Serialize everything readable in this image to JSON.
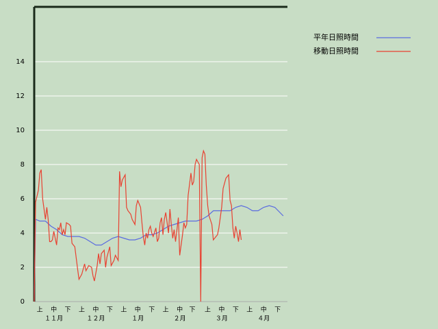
{
  "chart_data": {
    "type": "line",
    "xlim": [
      0,
      181
    ],
    "ylim": [
      0,
      17.2
    ],
    "yticks": [
      0,
      2,
      4,
      6,
      8,
      10,
      12,
      14
    ],
    "xticks": [
      {
        "value": 4,
        "label": "上"
      },
      {
        "value": 14,
        "label": "中"
      },
      {
        "value": 24,
        "label": "下"
      },
      {
        "value": 34,
        "label": "上"
      },
      {
        "value": 44,
        "label": "中"
      },
      {
        "value": 54,
        "label": "下"
      },
      {
        "value": 64,
        "label": "上"
      },
      {
        "value": 74,
        "label": "中"
      },
      {
        "value": 84,
        "label": "下"
      },
      {
        "value": 94,
        "label": "上"
      },
      {
        "value": 104,
        "label": "中"
      },
      {
        "value": 113,
        "label": "下"
      },
      {
        "value": 124,
        "label": "上"
      },
      {
        "value": 134,
        "label": "中"
      },
      {
        "value": 144,
        "label": "下"
      },
      {
        "value": 154,
        "label": "上"
      },
      {
        "value": 164,
        "label": "中"
      },
      {
        "value": 174,
        "label": "下"
      }
    ],
    "month_labels": [
      {
        "value": 14,
        "label": "１１月"
      },
      {
        "value": 44,
        "label": "１２月"
      },
      {
        "value": 74,
        "label": "１月"
      },
      {
        "value": 104,
        "label": "２月"
      },
      {
        "value": 134,
        "label": "３月"
      },
      {
        "value": 164,
        "label": "４月"
      }
    ],
    "grid": true,
    "series": [
      {
        "name": "平年日照時間",
        "color": "#5a6be0",
        "x": [
          0,
          1,
          4,
          8,
          12,
          16,
          20,
          24,
          28,
          32,
          36,
          40,
          44,
          48,
          52,
          56,
          60,
          64,
          68,
          72,
          76,
          80,
          84,
          88,
          92,
          96,
          100,
          104,
          108,
          112,
          116,
          120,
          124,
          128,
          132,
          136,
          140,
          144,
          148,
          152,
          156,
          160,
          164,
          168,
          172,
          178
        ],
        "values": [
          0,
          4.8,
          4.7,
          4.7,
          4.4,
          4.2,
          3.9,
          3.8,
          3.8,
          3.8,
          3.7,
          3.5,
          3.3,
          3.3,
          3.5,
          3.7,
          3.8,
          3.7,
          3.6,
          3.6,
          3.7,
          3.9,
          3.9,
          4.0,
          4.2,
          4.4,
          4.5,
          4.6,
          4.7,
          4.7,
          4.7,
          4.8,
          5.0,
          5.3,
          5.3,
          5.3,
          5.3,
          5.5,
          5.6,
          5.5,
          5.3,
          5.3,
          5.5,
          5.6,
          5.5,
          5.0
        ]
      },
      {
        "name": "移動日照時間",
        "color": "#e84030",
        "x": [
          0,
          1,
          3,
          4,
          5,
          6,
          8,
          9,
          10,
          11,
          12,
          13,
          14,
          16,
          17,
          18,
          19,
          20,
          21,
          22,
          23,
          25,
          26,
          27,
          29,
          31,
          32,
          34,
          36,
          37,
          39,
          41,
          42,
          43,
          45,
          46,
          47,
          48,
          50,
          51,
          52,
          54,
          55,
          57,
          58,
          60,
          61,
          62,
          63,
          65,
          66,
          67,
          69,
          70,
          72,
          73,
          74,
          76,
          77,
          78,
          79,
          80,
          81,
          82,
          83,
          84,
          85,
          87,
          88,
          89,
          90,
          91,
          92,
          93,
          94,
          96,
          97,
          98,
          99,
          100,
          101,
          103,
          104,
          106,
          107,
          108,
          109,
          110,
          112,
          113,
          114,
          115,
          116,
          118,
          119,
          120,
          121,
          122,
          123,
          124,
          125,
          127,
          128,
          130,
          131,
          132,
          134,
          135,
          137,
          138,
          139,
          140,
          141,
          142,
          143,
          144,
          145,
          146,
          147,
          148
        ],
        "values": [
          0,
          5.8,
          6.5,
          7.5,
          7.7,
          6,
          4.8,
          5.5,
          4.8,
          3.5,
          3.5,
          3.6,
          4.1,
          3.3,
          4.3,
          4.2,
          4.6,
          3.9,
          4.2,
          3.9,
          4.6,
          4.5,
          4.4,
          3.4,
          3.2,
          1.9,
          1.3,
          1.6,
          2.2,
          1.8,
          2.1,
          2.0,
          1.5,
          1.2,
          2.1,
          2.8,
          2.2,
          2.8,
          3.0,
          2.0,
          2.6,
          3.2,
          2.1,
          2.4,
          2.7,
          2.4,
          7.6,
          6.7,
          7.1,
          7.4,
          5.5,
          5.3,
          5.1,
          4.8,
          4.5,
          5.6,
          5.9,
          5.5,
          4.6,
          3.8,
          3.3,
          4.0,
          3.7,
          4.2,
          4.4,
          4.0,
          3.8,
          4.3,
          3.5,
          3.7,
          4.6,
          4.9,
          3.9,
          4.8,
          5.2,
          4.0,
          5.4,
          4.5,
          3.7,
          4.2,
          3.5,
          4.9,
          2.7,
          3.9,
          4.6,
          4.3,
          4.5,
          6.2,
          7.5,
          6.8,
          7.0,
          8.0,
          8.3,
          8.0,
          0,
          8.4,
          8.8,
          8.6,
          6.8,
          5.6,
          5.0,
          4.5,
          3.6,
          3.8,
          3.9,
          4.3,
          5.5,
          6.6,
          7.2,
          7.3,
          7.4,
          5.9,
          5.6,
          4.3,
          3.7,
          4.4,
          4.0,
          3.5,
          4.2,
          3.6
        ]
      }
    ]
  }
}
